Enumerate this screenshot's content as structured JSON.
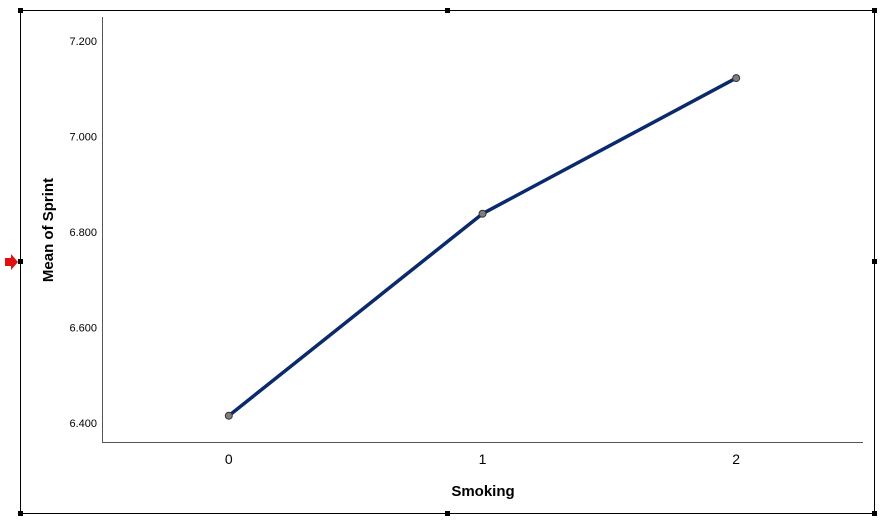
{
  "colors": {
    "series": "#0b2a6b",
    "marker_fill": "#7f7f7f",
    "selection_arrow": "#e01010"
  },
  "icons": {
    "selection_marker": "red-arrow-icon"
  },
  "chart_data": {
    "type": "line",
    "xlabel": "Smoking",
    "ylabel": "Mean of Sprint",
    "categories": [
      "0",
      "1",
      "2"
    ],
    "x": [
      0,
      1,
      2
    ],
    "xlim": [
      -0.5,
      2.5
    ],
    "ylim": [
      6.36,
      7.25
    ],
    "yticks": [
      6.4,
      6.6,
      6.8,
      7.0,
      7.2
    ],
    "ytick_labels": [
      "6.400",
      "6.600",
      "6.800",
      "7.000",
      "7.200"
    ],
    "grid": false,
    "series": [
      {
        "values": [
          6.415,
          6.838,
          7.122
        ]
      }
    ]
  }
}
